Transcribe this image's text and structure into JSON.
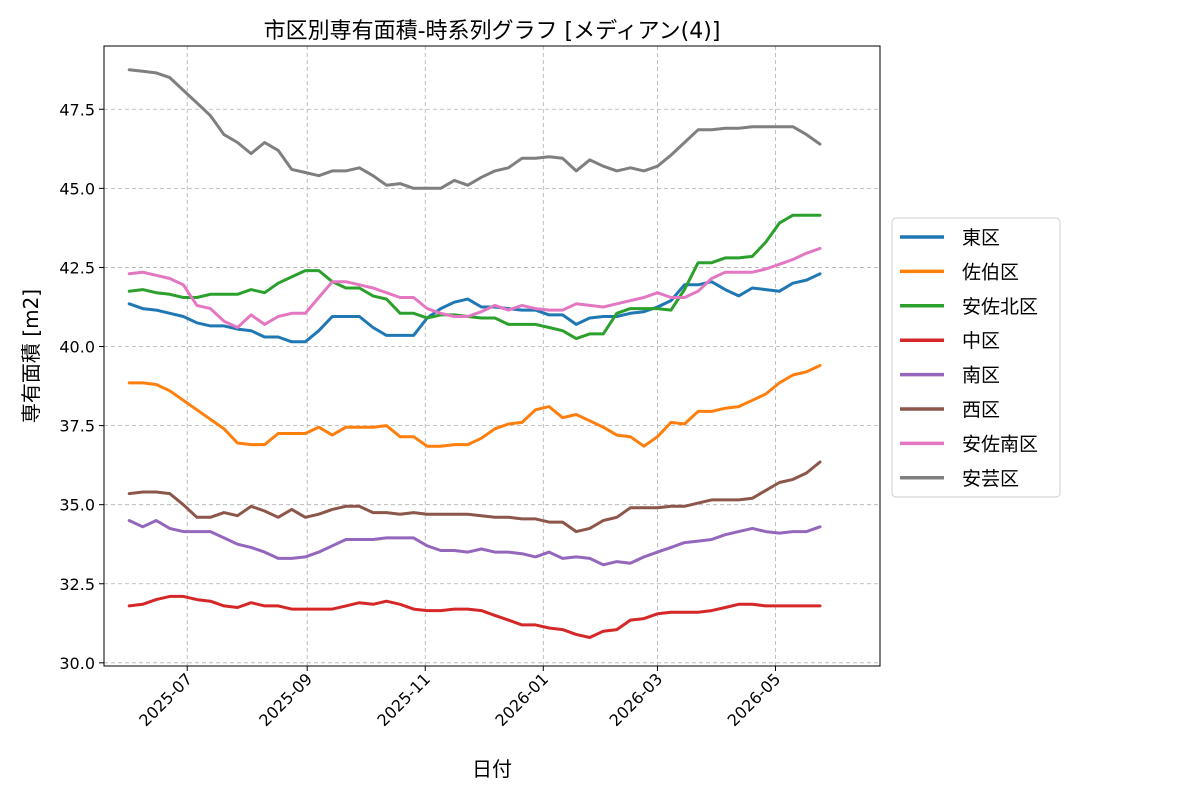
{
  "chart_data": {
    "type": "line",
    "title": "市区別専有面積-時系列グラフ [メディアン(4)]",
    "xlabel": "日付",
    "ylabel": "専有面積 [m2]",
    "xlim": [
      "2025-05-19",
      "2026-06-24"
    ],
    "ylim": [
      29.9,
      49.5
    ],
    "yticks": [
      30.0,
      32.5,
      35.0,
      37.5,
      40.0,
      42.5,
      45.0,
      47.5
    ],
    "xticks": [
      "2025-07-01",
      "2025-09-01",
      "2025-11-01",
      "2026-01-01",
      "2026-03-01",
      "2026-05-01"
    ],
    "xtick_labels": [
      "2025-07",
      "2025-09",
      "2025-11",
      "2026-01",
      "2026-03",
      "2026-05"
    ],
    "grid": true,
    "legend_position": "right",
    "start_date": "2025-06-01",
    "x_step_days": 7,
    "series": [
      {
        "name": "東区",
        "color": "#1f77b4",
        "values": [
          41.35,
          41.2,
          41.15,
          41.05,
          40.95,
          40.75,
          40.65,
          40.65,
          40.55,
          40.5,
          40.3,
          40.3,
          40.15,
          40.15,
          40.5,
          40.95,
          40.95,
          40.95,
          40.6,
          40.35,
          40.35,
          40.35,
          40.9,
          41.2,
          41.4,
          41.5,
          41.25,
          41.25,
          41.2,
          41.15,
          41.15,
          41.0,
          41.0,
          40.7,
          40.9,
          40.95,
          40.95,
          41.05,
          41.1,
          41.25,
          41.45,
          41.95,
          41.95,
          42.05,
          41.8,
          41.6,
          41.85,
          41.8,
          41.75,
          42.0,
          42.1,
          42.3
        ]
      },
      {
        "name": "佐伯区",
        "color": "#ff7f0e",
        "values": [
          38.85,
          38.85,
          38.8,
          38.6,
          38.3,
          38.0,
          37.7,
          37.4,
          36.95,
          36.9,
          36.9,
          37.25,
          37.25,
          37.25,
          37.45,
          37.2,
          37.45,
          37.45,
          37.45,
          37.5,
          37.15,
          37.15,
          36.85,
          36.85,
          36.9,
          36.9,
          37.1,
          37.4,
          37.55,
          37.6,
          38.0,
          38.1,
          37.75,
          37.85,
          37.65,
          37.45,
          37.2,
          37.15,
          36.85,
          37.15,
          37.6,
          37.55,
          37.95,
          37.95,
          38.05,
          38.1,
          38.3,
          38.5,
          38.85,
          39.1,
          39.2,
          39.4
        ]
      },
      {
        "name": "安佐北区",
        "color": "#2ca02c",
        "values": [
          41.75,
          41.8,
          41.7,
          41.65,
          41.55,
          41.55,
          41.65,
          41.65,
          41.65,
          41.8,
          41.7,
          42.0,
          42.2,
          42.4,
          42.4,
          42.05,
          41.85,
          41.85,
          41.6,
          41.5,
          41.05,
          41.05,
          40.9,
          41.0,
          41.0,
          40.95,
          40.9,
          40.9,
          40.7,
          40.7,
          40.7,
          40.6,
          40.5,
          40.25,
          40.4,
          40.4,
          41.05,
          41.2,
          41.2,
          41.2,
          41.15,
          41.8,
          42.65,
          42.65,
          42.8,
          42.8,
          42.85,
          43.3,
          43.9,
          44.15,
          44.15,
          44.15
        ]
      },
      {
        "name": "中区",
        "color": "#d62728",
        "values": [
          31.8,
          31.85,
          32.0,
          32.1,
          32.1,
          32.0,
          31.95,
          31.8,
          31.75,
          31.9,
          31.8,
          31.8,
          31.7,
          31.7,
          31.7,
          31.7,
          31.8,
          31.9,
          31.85,
          31.95,
          31.85,
          31.7,
          31.65,
          31.65,
          31.7,
          31.7,
          31.65,
          31.5,
          31.35,
          31.2,
          31.2,
          31.1,
          31.05,
          30.9,
          30.8,
          31.0,
          31.05,
          31.35,
          31.4,
          31.55,
          31.6,
          31.6,
          31.6,
          31.65,
          31.75,
          31.85,
          31.85,
          31.8,
          31.8,
          31.8,
          31.8,
          31.8
        ]
      },
      {
        "name": "南区",
        "color": "#9467bd",
        "values": [
          34.5,
          34.3,
          34.5,
          34.25,
          34.15,
          34.15,
          34.15,
          33.95,
          33.75,
          33.65,
          33.5,
          33.3,
          33.3,
          33.35,
          33.5,
          33.7,
          33.9,
          33.9,
          33.9,
          33.95,
          33.95,
          33.95,
          33.7,
          33.55,
          33.55,
          33.5,
          33.6,
          33.5,
          33.5,
          33.45,
          33.35,
          33.5,
          33.3,
          33.35,
          33.3,
          33.1,
          33.2,
          33.15,
          33.35,
          33.5,
          33.65,
          33.8,
          33.85,
          33.9,
          34.05,
          34.15,
          34.25,
          34.15,
          34.1,
          34.15,
          34.15,
          34.3
        ]
      },
      {
        "name": "西区",
        "color": "#8c564b",
        "values": [
          35.35,
          35.4,
          35.4,
          35.35,
          35.0,
          34.6,
          34.6,
          34.75,
          34.65,
          34.95,
          34.8,
          34.6,
          34.85,
          34.6,
          34.7,
          34.85,
          34.95,
          34.95,
          34.75,
          34.75,
          34.7,
          34.75,
          34.7,
          34.7,
          34.7,
          34.7,
          34.65,
          34.6,
          34.6,
          34.55,
          34.55,
          34.45,
          34.45,
          34.15,
          34.25,
          34.5,
          34.6,
          34.9,
          34.9,
          34.9,
          34.95,
          34.95,
          35.05,
          35.15,
          35.15,
          35.15,
          35.2,
          35.45,
          35.7,
          35.8,
          36.0,
          36.35
        ]
      },
      {
        "name": "安佐南区",
        "color": "#e377c2",
        "values": [
          42.3,
          42.35,
          42.25,
          42.15,
          41.95,
          41.3,
          41.2,
          40.8,
          40.6,
          41.0,
          40.7,
          40.95,
          41.05,
          41.05,
          41.55,
          42.05,
          42.05,
          41.95,
          41.85,
          41.7,
          41.55,
          41.55,
          41.2,
          41.05,
          40.95,
          40.95,
          41.1,
          41.3,
          41.15,
          41.3,
          41.2,
          41.15,
          41.15,
          41.35,
          41.3,
          41.25,
          41.35,
          41.45,
          41.55,
          41.7,
          41.55,
          41.55,
          41.75,
          42.15,
          42.35,
          42.35,
          42.35,
          42.45,
          42.6,
          42.75,
          42.95,
          43.1
        ]
      },
      {
        "name": "安芸区",
        "color": "#7f7f7f",
        "values": [
          48.75,
          48.7,
          48.65,
          48.5,
          48.1,
          47.7,
          47.3,
          46.7,
          46.45,
          46.1,
          46.45,
          46.2,
          45.6,
          45.5,
          45.4,
          45.55,
          45.55,
          45.65,
          45.4,
          45.1,
          45.15,
          45.0,
          45.0,
          45.0,
          45.25,
          45.1,
          45.35,
          45.55,
          45.65,
          45.95,
          45.95,
          46.0,
          45.95,
          45.55,
          45.9,
          45.7,
          45.55,
          45.65,
          45.55,
          45.7,
          46.05,
          46.45,
          46.85,
          46.85,
          46.9,
          46.9,
          46.95,
          46.95,
          46.95,
          46.95,
          46.7,
          46.4
        ]
      }
    ]
  }
}
